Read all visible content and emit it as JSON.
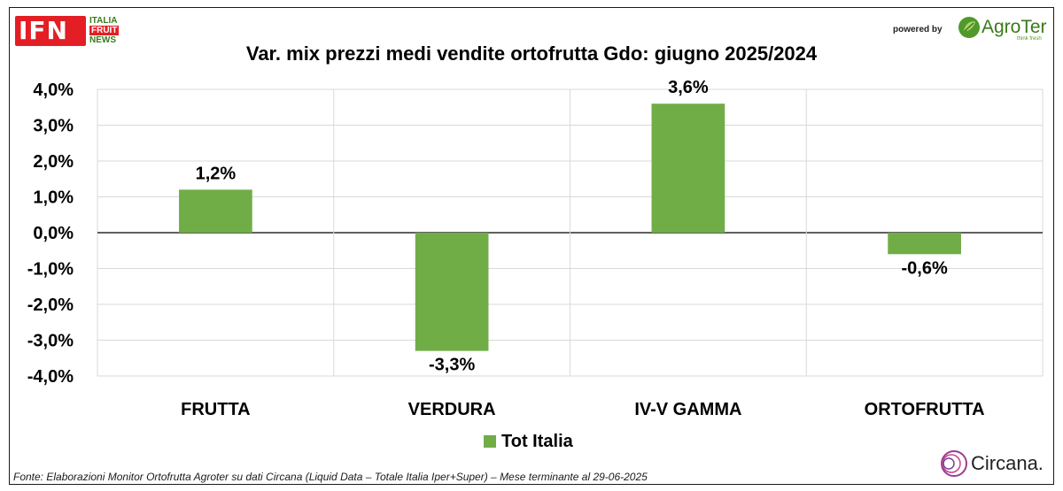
{
  "header": {
    "logo_left": {
      "main": "IFN",
      "line1": "ITALIA",
      "line2": "FRUIT",
      "line3": "NEWS"
    },
    "powered_by": "powered by",
    "logo_right": {
      "name": "AgroTer",
      "tagline": "think fresh"
    }
  },
  "footer": {
    "source": "Fonte: Elaborazioni Monitor Ortofrutta Agroter su dati Circana (Liquid Data – Totale Italia Iper+Super) – Mese terminante al 29-06-2025",
    "brand": "Circana."
  },
  "colors": {
    "bar": "#70ad47",
    "grid": "#d9d9d9",
    "axis": "#000000"
  },
  "chart_data": {
    "type": "bar",
    "title": "Var. mix prezzi medi vendite ortofrutta Gdo: giugno 2025/2024",
    "categories": [
      "FRUTTA",
      "VERDURA",
      "IV-V GAMMA",
      "ORTOFRUTTA"
    ],
    "series": [
      {
        "name": "Tot Italia",
        "values": [
          1.2,
          -3.3,
          3.6,
          -0.6
        ]
      }
    ],
    "data_labels": [
      "1,2%",
      "-3,3%",
      "3,6%",
      "-0,6%"
    ],
    "ylim": [
      -4.0,
      4.0
    ],
    "yticks": [
      4.0,
      3.0,
      2.0,
      1.0,
      0.0,
      -1.0,
      -2.0,
      -3.0,
      -4.0
    ],
    "ytick_labels": [
      "4,0%",
      "3,0%",
      "2,0%",
      "1,0%",
      "0,0%",
      "-1,0%",
      "-2,0%",
      "-3,0%",
      "-4,0%"
    ],
    "grid": true,
    "legend": "bottom"
  }
}
